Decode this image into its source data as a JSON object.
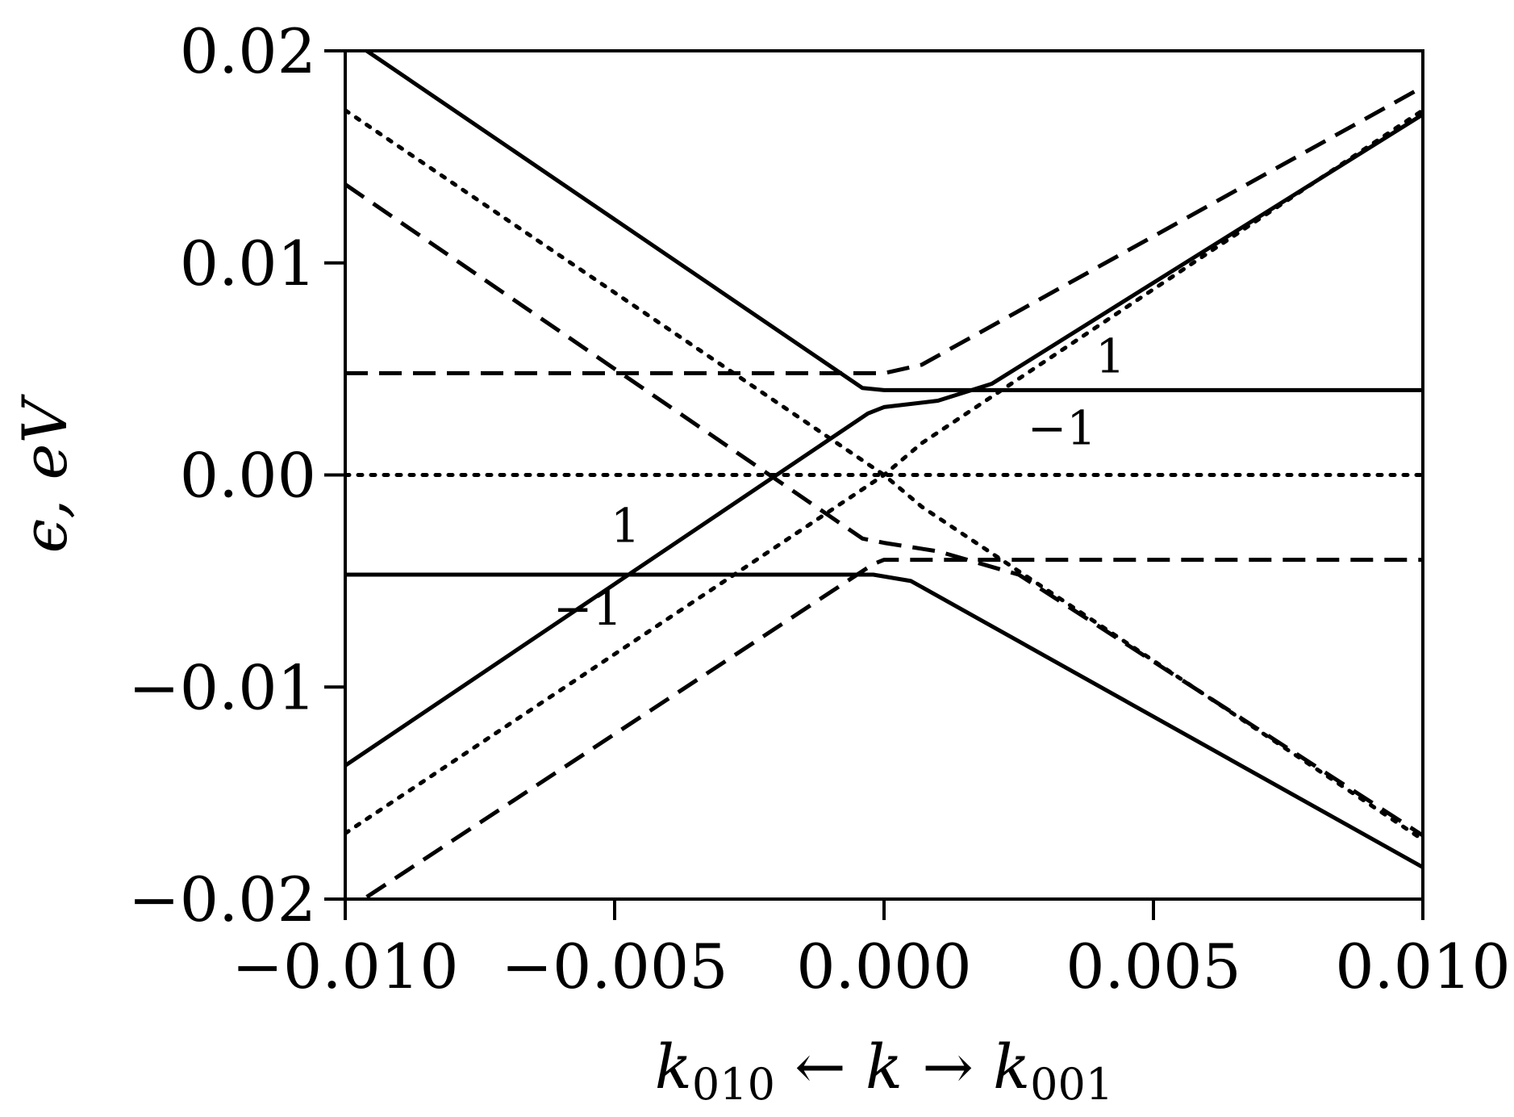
{
  "chart_data": {
    "type": "line",
    "xlabel": "k010 ← k → k001",
    "xlabel_parts": {
      "left": "k",
      "left_sub": "010",
      "arrow_left": "←",
      "middle": "k",
      "arrow_right": "→",
      "right": "k",
      "right_sub": "001"
    },
    "ylabel": "ϵ, eV",
    "xlim": [
      -0.01,
      0.01
    ],
    "ylim": [
      -0.02,
      0.02
    ],
    "xticks": [
      -0.01,
      -0.005,
      0.0,
      0.005,
      0.01
    ],
    "xtick_labels": [
      "−0.010",
      "−0.005",
      "0.000",
      "0.005",
      "0.010"
    ],
    "yticks": [
      -0.02,
      -0.01,
      0.0,
      0.01,
      0.02
    ],
    "ytick_labels": [
      "−0.02",
      "−0.01",
      "0.00",
      "0.01",
      "0.02"
    ],
    "grid": false,
    "legend": "none",
    "series": [
      {
        "style": "solid",
        "points": [
          [
            -0.0096,
            0.02
          ],
          [
            -0.0004,
            0.0041
          ],
          [
            0.0,
            0.004
          ],
          [
            0.01,
            0.004
          ]
        ]
      },
      {
        "style": "solid",
        "points": [
          [
            -0.01,
            -0.0047
          ],
          [
            -0.0002,
            -0.0047
          ],
          [
            0.0005,
            -0.005
          ],
          [
            0.01,
            -0.0185
          ]
        ]
      },
      {
        "style": "solid",
        "points": [
          [
            -0.01,
            -0.0137
          ],
          [
            -0.0003,
            0.0029
          ],
          [
            0.0,
            0.0032
          ],
          [
            0.001,
            0.0035
          ],
          [
            0.002,
            0.0043
          ],
          [
            0.01,
            0.017
          ]
        ]
      },
      {
        "style": "dashed",
        "points": [
          [
            -0.01,
            0.0048
          ],
          [
            -0.0002,
            0.0048
          ],
          [
            0.0,
            0.0048
          ],
          [
            0.0007,
            0.0052
          ],
          [
            0.01,
            0.0183
          ]
        ]
      },
      {
        "style": "dashed",
        "points": [
          [
            -0.01,
            0.0137
          ],
          [
            -0.0004,
            -0.003
          ],
          [
            0.0,
            -0.0032
          ],
          [
            0.001,
            -0.0036
          ],
          [
            0.0025,
            -0.0047
          ],
          [
            0.01,
            -0.017
          ]
        ]
      },
      {
        "style": "dashed",
        "points": [
          [
            -0.0096,
            -0.0199
          ],
          [
            -0.0002,
            -0.0042
          ],
          [
            0.0,
            -0.004
          ],
          [
            0.01,
            -0.004
          ]
        ]
      },
      {
        "style": "dotted",
        "points": [
          [
            -0.01,
            0.0
          ],
          [
            0.01,
            0.0
          ]
        ]
      },
      {
        "style": "dotted",
        "points": [
          [
            -0.01,
            0.0172
          ],
          [
            0.0,
            0.0
          ],
          [
            0.0007,
            -0.0015
          ],
          [
            0.01,
            -0.0172
          ]
        ]
      },
      {
        "style": "dotted",
        "points": [
          [
            -0.01,
            -0.0169
          ],
          [
            0.0,
            0.0
          ],
          [
            0.0007,
            0.0015
          ],
          [
            0.01,
            0.0172
          ]
        ]
      }
    ],
    "annotations": [
      {
        "text": "1",
        "x": 0.0042,
        "y": 0.0056
      },
      {
        "text": "−1",
        "x": 0.0033,
        "y": 0.0022
      },
      {
        "text": "1",
        "x": -0.0048,
        "y": -0.0024
      },
      {
        "text": "−1",
        "x": -0.0055,
        "y": -0.0063
      }
    ]
  }
}
